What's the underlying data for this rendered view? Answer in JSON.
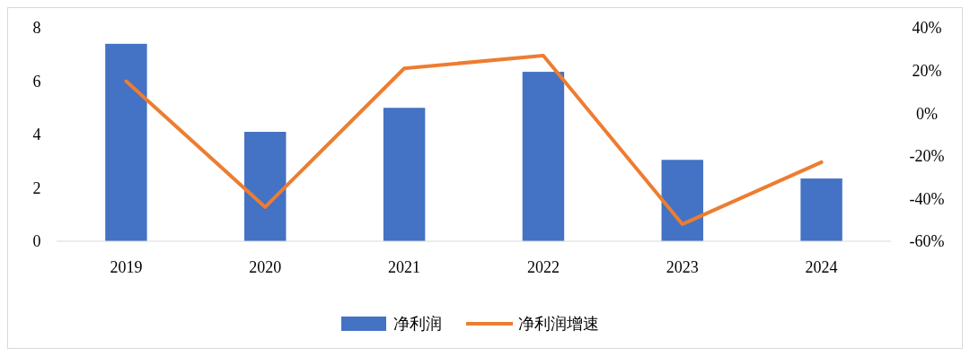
{
  "chart_data": {
    "type": "bar",
    "categories": [
      "2019",
      "2020",
      "2021",
      "2022",
      "2023",
      "2024"
    ],
    "series": [
      {
        "name": "净利润",
        "color": "#4472c4",
        "values": [
          7.4,
          4.1,
          5.0,
          6.35,
          3.05,
          2.35
        ]
      },
      {
        "name": "净利润增速",
        "type": "line",
        "axis": "y2",
        "color": "#ed7d31",
        "values": [
          15,
          -44,
          21,
          27,
          -52,
          -23
        ]
      }
    ],
    "ylim": [
      0,
      8
    ],
    "yticks": [
      0,
      2,
      4,
      6,
      8
    ],
    "y2lim": [
      -60,
      40
    ],
    "y2ticks": [
      {
        "value": -60,
        "label": "-60%"
      },
      {
        "value": -40,
        "label": "-40%"
      },
      {
        "value": -20,
        "label": "-20%"
      },
      {
        "value": 0,
        "label": "0%"
      },
      {
        "value": 20,
        "label": "20%"
      },
      {
        "value": 40,
        "label": "40%"
      }
    ],
    "legend": "bottom",
    "grid": false
  }
}
